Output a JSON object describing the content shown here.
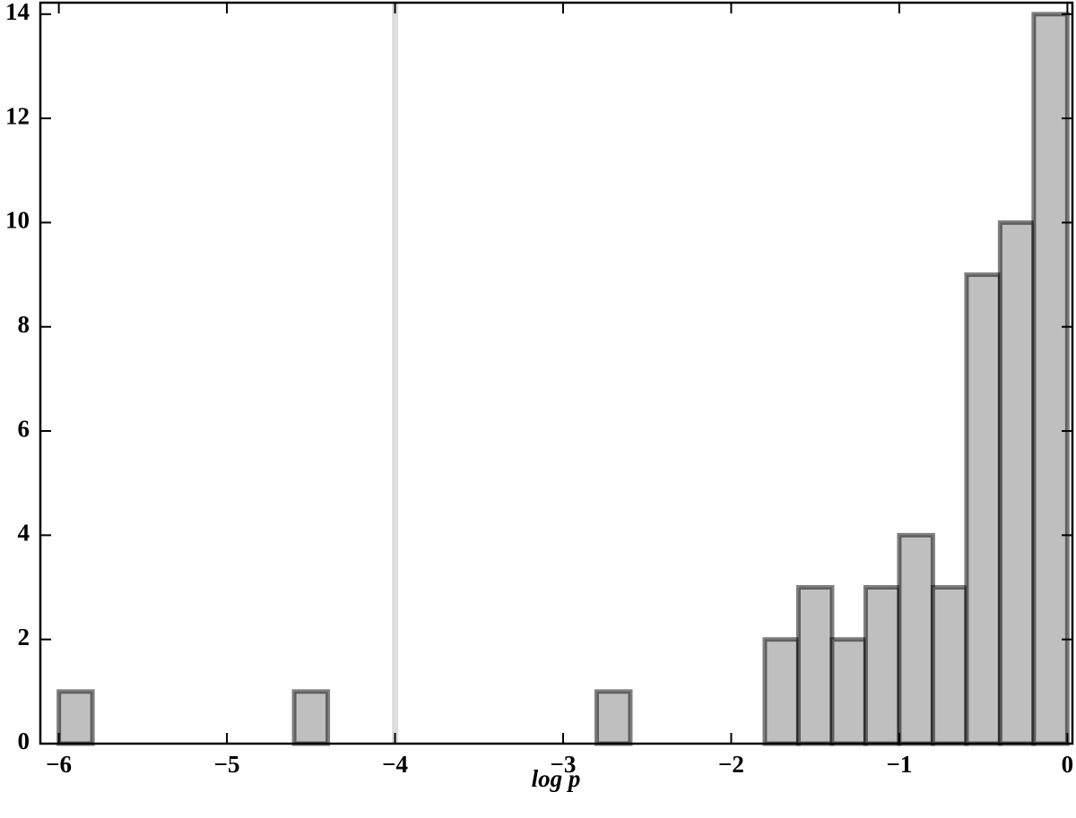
{
  "chart_data": {
    "type": "histogram",
    "xlabel": "log p",
    "bins": [
      -6,
      -5.8,
      -5.6,
      -5.4,
      -5.2,
      -5,
      -4.8,
      -4.6,
      -4.4,
      -4.2,
      -4,
      -3.8,
      -3.6,
      -3.4,
      -3.2,
      -3,
      -2.8,
      -2.6,
      -2.4,
      -2.2,
      -2,
      -1.8,
      -1.6,
      -1.4,
      -1.2,
      -1,
      -0.8,
      -0.6,
      -0.4,
      -0.2,
      0
    ],
    "values": [
      1,
      0,
      0,
      0,
      0,
      0,
      0,
      1,
      0,
      0,
      0,
      0,
      0,
      0,
      0,
      0,
      1,
      0,
      0,
      0,
      0,
      2,
      3,
      2,
      3,
      4,
      3,
      9,
      10,
      14
    ],
    "color": "#bfbfbf",
    "edge_color": "#000000",
    "reference_line": -4,
    "reference_color": "#dddddd",
    "xlim": [
      -6.11,
      0.03
    ],
    "ylim": [
      0,
      14.22
    ],
    "xticks": [
      {
        "value": -6,
        "label": "−6"
      },
      {
        "value": -5,
        "label": "−5"
      },
      {
        "value": -4,
        "label": "−4"
      },
      {
        "value": -3,
        "label": "−3"
      },
      {
        "value": -2,
        "label": "−2"
      },
      {
        "value": -1,
        "label": "−1"
      },
      0
    ],
    "yticks": [
      0,
      2,
      4,
      6,
      8,
      10,
      12,
      14
    ]
  }
}
